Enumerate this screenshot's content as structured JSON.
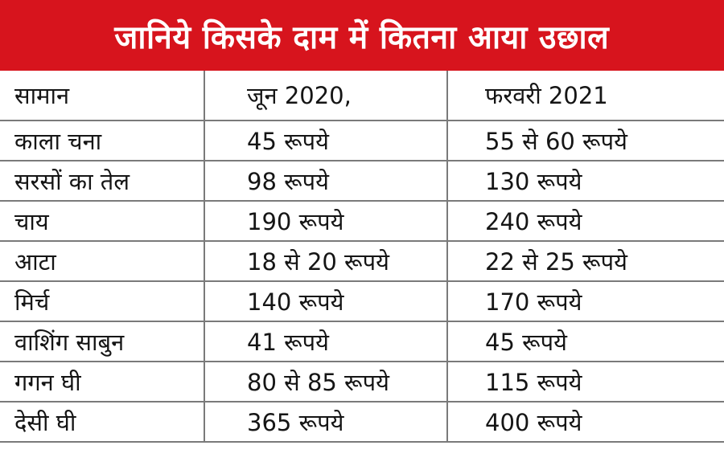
{
  "title": "जानिये किसके दाम में कितना आया उछाल",
  "colors": {
    "banner_background": "#d7141d",
    "banner_text": "#ffffff",
    "grid_lines": "#7a7a7a"
  },
  "table": {
    "headers": [
      "सामान",
      "जून 2020,",
      "फरवरी 2021"
    ],
    "rows": [
      [
        "काला चना",
        "45 रूपये",
        "55 से 60 रूपये"
      ],
      [
        "सरसों का तेल",
        "98 रूपये",
        "130 रूपये"
      ],
      [
        "चाय",
        "190 रूपये",
        "240 रूपये"
      ],
      [
        "आटा",
        "18 से 20 रूपये",
        "22 से 25 रूपये"
      ],
      [
        "मिर्च",
        "140 रूपये",
        "170 रूपये"
      ],
      [
        "वाशिंग साबुन",
        "41 रूपये",
        "45 रूपये"
      ],
      [
        "गगन घी",
        "80 से 85 रूपये",
        "115 रूपये"
      ],
      [
        "देसी घी",
        "365 रूपये",
        "400 रूपये"
      ]
    ]
  }
}
